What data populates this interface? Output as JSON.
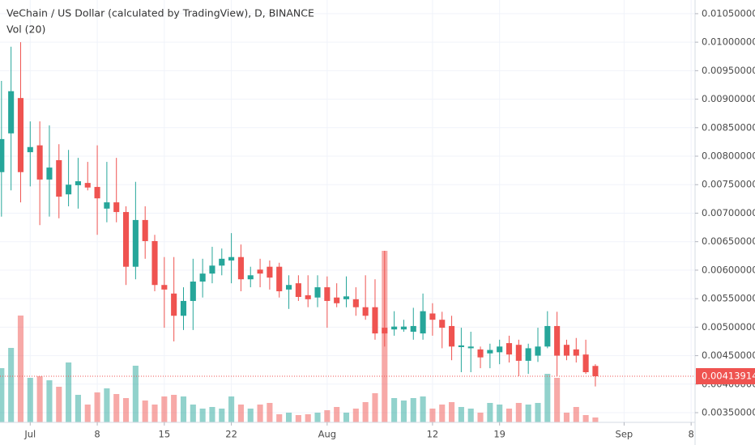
{
  "chart_data": {
    "type": "candlestick",
    "title": "VeChain / US Dollar (calculated by TradingView), D, BINANCE",
    "volume_title": "Vol (20)",
    "up_color": "#26a69a",
    "down_color": "#ef5350",
    "x": [
      "06-28",
      "06-29",
      "06-30",
      "07-01",
      "07-02",
      "07-03",
      "07-04",
      "07-05",
      "07-06",
      "07-07",
      "07-08",
      "07-09",
      "07-10",
      "07-11",
      "07-12",
      "07-13",
      "07-14",
      "07-15",
      "07-16",
      "07-17",
      "07-18",
      "07-19",
      "07-20",
      "07-21",
      "07-22",
      "07-23",
      "07-24",
      "07-25",
      "07-26",
      "07-27",
      "07-28",
      "07-29",
      "07-30",
      "07-31",
      "08-01",
      "08-02",
      "08-03",
      "08-04",
      "08-05",
      "08-06",
      "08-07",
      "08-08",
      "08-09",
      "08-10",
      "08-11",
      "08-12",
      "08-13",
      "08-14",
      "08-15",
      "08-16",
      "08-17",
      "08-18",
      "08-19",
      "08-20",
      "08-21",
      "08-22",
      "08-23",
      "08-24",
      "08-25",
      "08-26",
      "08-27",
      "08-28",
      "08-29"
    ],
    "open": [
      0.00772,
      0.0084,
      0.00902,
      0.00807,
      0.00819,
      0.00759,
      0.00793,
      0.00733,
      0.00749,
      0.00753,
      0.00746,
      0.00708,
      0.00719,
      0.00702,
      0.00606,
      0.00688,
      0.00651,
      0.00574,
      0.00559,
      0.0052,
      0.00546,
      0.0058,
      0.00594,
      0.00608,
      0.00617,
      0.00623,
      0.00584,
      0.00601,
      0.00606,
      0.00606,
      0.00566,
      0.00577,
      0.00556,
      0.00552,
      0.0057,
      0.00552,
      0.00549,
      0.00549,
      0.00535,
      0.00535,
      0.00499,
      0.00496,
      0.00496,
      0.00492,
      0.00489,
      0.00524,
      0.00513,
      0.00502,
      0.00465,
      0.00463,
      0.00461,
      0.00454,
      0.00456,
      0.00472,
      0.00469,
      0.00441,
      0.0045,
      0.00466,
      0.00502,
      0.00469,
      0.00461,
      0.00452,
      0.00432
    ],
    "high": [
      0.00932,
      0.00992,
      0.01,
      0.00861,
      0.00861,
      0.00854,
      0.00821,
      0.00811,
      0.00797,
      0.0079,
      0.00819,
      0.0079,
      0.00797,
      0.00712,
      0.00755,
      0.00712,
      0.00662,
      0.00623,
      0.00623,
      0.0057,
      0.0062,
      0.0062,
      0.00641,
      0.00638,
      0.00665,
      0.00645,
      0.00606,
      0.0062,
      0.00617,
      0.00613,
      0.00591,
      0.00591,
      0.00591,
      0.00591,
      0.00589,
      0.00577,
      0.00589,
      0.0057,
      0.00591,
      0.00584,
      0.00634,
      0.00528,
      0.00513,
      0.00534,
      0.00559,
      0.00542,
      0.00527,
      0.0052,
      0.00499,
      0.00492,
      0.00466,
      0.00471,
      0.00478,
      0.00485,
      0.00478,
      0.00471,
      0.00499,
      0.00528,
      0.00527,
      0.00478,
      0.00481,
      0.00478,
      0.00435
    ],
    "low": [
      0.00694,
      0.0074,
      0.00719,
      0.00747,
      0.00679,
      0.00694,
      0.00691,
      0.00712,
      0.00708,
      0.0074,
      0.00662,
      0.00684,
      0.00684,
      0.00574,
      0.00584,
      0.0062,
      0.00563,
      0.00499,
      0.00475,
      0.00495,
      0.00495,
      0.00552,
      0.00577,
      0.00591,
      0.00577,
      0.00563,
      0.0057,
      0.0057,
      0.00566,
      0.00552,
      0.00532,
      0.00546,
      0.00535,
      0.00535,
      0.00499,
      0.00535,
      0.00535,
      0.0052,
      0.00513,
      0.00478,
      0.00466,
      0.00485,
      0.00492,
      0.00478,
      0.00478,
      0.00485,
      0.00463,
      0.00442,
      0.00421,
      0.00421,
      0.00428,
      0.00428,
      0.00435,
      0.00438,
      0.00414,
      0.00418,
      0.00439,
      0.00463,
      0.00414,
      0.00442,
      0.00438,
      0.00418,
      0.00396
    ],
    "close": [
      0.0083,
      0.00914,
      0.00772,
      0.00816,
      0.00759,
      0.0078,
      0.00729,
      0.0075,
      0.00756,
      0.00745,
      0.00726,
      0.00719,
      0.00702,
      0.00606,
      0.00688,
      0.00651,
      0.00574,
      0.00566,
      0.0052,
      0.00546,
      0.0058,
      0.00594,
      0.00608,
      0.0062,
      0.00623,
      0.00584,
      0.00591,
      0.00594,
      0.00587,
      0.00563,
      0.00574,
      0.00553,
      0.00549,
      0.0057,
      0.00546,
      0.00542,
      0.00554,
      0.00535,
      0.0052,
      0.00489,
      0.00489,
      0.00501,
      0.00501,
      0.00502,
      0.00528,
      0.00513,
      0.00499,
      0.00466,
      0.00468,
      0.00466,
      0.00447,
      0.0046,
      0.00466,
      0.00452,
      0.00441,
      0.00463,
      0.00466,
      0.00502,
      0.0045,
      0.0045,
      0.0045,
      0.00421,
      0.00413914
    ],
    "volume": [
      67,
      92,
      132,
      55,
      57,
      52,
      44,
      74,
      34,
      22,
      37,
      42,
      35,
      30,
      70,
      27,
      22,
      32,
      34,
      32,
      22,
      17,
      19,
      17,
      32,
      22,
      17,
      22,
      24,
      10,
      12,
      9,
      10,
      12,
      15,
      19,
      12,
      17,
      25,
      36,
      212,
      30,
      27,
      30,
      32,
      17,
      22,
      25,
      19,
      17,
      12,
      24,
      22,
      17,
      24,
      22,
      24,
      60,
      55,
      12,
      19,
      9,
      6
    ],
    "volume_ylim": [
      0,
      300
    ],
    "xlim": [
      "06-27",
      "09-09"
    ],
    "xticks": [
      {
        "value": "07-01",
        "label": "Jul"
      },
      {
        "value": "07-08",
        "label": "8"
      },
      {
        "value": "07-15",
        "label": "15"
      },
      {
        "value": "07-22",
        "label": "22"
      },
      {
        "value": "08-01",
        "label": "Aug"
      },
      {
        "value": "08-12",
        "label": "12"
      },
      {
        "value": "08-19",
        "label": "19"
      },
      {
        "value": "09-01",
        "label": "Sep"
      },
      {
        "value": "09-08",
        "label": "8"
      }
    ],
    "ylim": [
      0.00333,
      0.01074
    ],
    "yticks": [
      {
        "value": 0.0035,
        "label": "0.00350000"
      },
      {
        "value": 0.004,
        "label": "0.00400000"
      },
      {
        "value": 0.0045,
        "label": "0.00450000"
      },
      {
        "value": 0.005,
        "label": "0.00500000"
      },
      {
        "value": 0.0055,
        "label": "0.00550000"
      },
      {
        "value": 0.006,
        "label": "0.00600000"
      },
      {
        "value": 0.0065,
        "label": "0.00650000"
      },
      {
        "value": 0.007,
        "label": "0.00700000"
      },
      {
        "value": 0.0075,
        "label": "0.00750000"
      },
      {
        "value": 0.008,
        "label": "0.00800000"
      },
      {
        "value": 0.0085,
        "label": "0.00850000"
      },
      {
        "value": 0.009,
        "label": "0.00900000"
      },
      {
        "value": 0.0095,
        "label": "0.00950000"
      },
      {
        "value": 0.01,
        "label": "0.01000000"
      },
      {
        "value": 0.0105,
        "label": "0.01050000"
      }
    ],
    "grid": true
  }
}
